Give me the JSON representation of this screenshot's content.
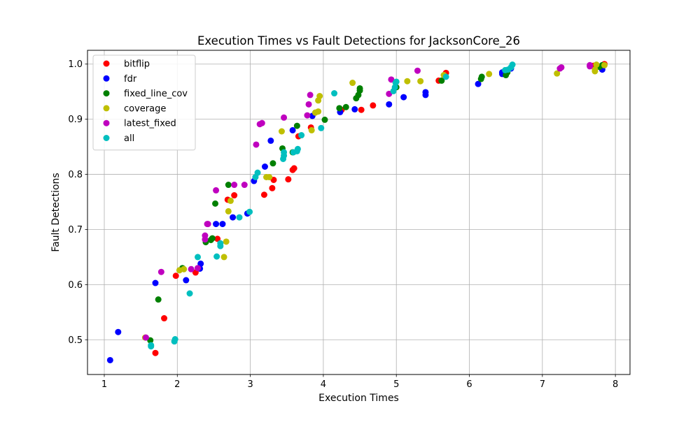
{
  "chart_data": {
    "type": "scatter",
    "title": "Execution Times vs Fault Detections for JacksonCore_26",
    "xlabel": "Execution Times",
    "ylabel": "Fault Detections",
    "xlim": [
      0.77,
      8.2
    ],
    "ylim": [
      0.437,
      1.025
    ],
    "xticks": [
      1,
      2,
      3,
      4,
      5,
      6,
      7,
      8
    ],
    "xtick_labels": [
      "1",
      "2",
      "3",
      "4",
      "5",
      "6",
      "7",
      "8"
    ],
    "yticks": [
      0.5,
      0.6,
      0.7,
      0.8,
      0.9,
      1.0
    ],
    "ytick_labels": [
      "0.5",
      "0.6",
      "0.7",
      "0.8",
      "0.9",
      "1.0"
    ],
    "grid": true,
    "legend_position": "upper left",
    "series": [
      {
        "name": "bitflip",
        "color": "#ff0000",
        "points": [
          [
            1.7,
            0.476
          ],
          [
            1.82,
            0.539
          ],
          [
            1.98,
            0.616
          ],
          [
            2.25,
            0.622
          ],
          [
            2.55,
            0.683
          ],
          [
            2.69,
            0.754
          ],
          [
            2.78,
            0.762
          ],
          [
            3.19,
            0.763
          ],
          [
            3.3,
            0.775
          ],
          [
            3.32,
            0.79
          ],
          [
            3.52,
            0.791
          ],
          [
            3.58,
            0.808
          ],
          [
            3.6,
            0.811
          ],
          [
            3.66,
            0.869
          ],
          [
            3.83,
            0.885
          ],
          [
            4.25,
            0.917
          ],
          [
            4.52,
            0.917
          ],
          [
            4.68,
            0.925
          ],
          [
            5.58,
            0.97
          ],
          [
            5.68,
            0.984
          ],
          [
            7.85,
            1.0
          ],
          [
            7.7,
            0.997
          ]
        ]
      },
      {
        "name": "fdr",
        "color": "#0000ff",
        "points": [
          [
            1.08,
            0.463
          ],
          [
            1.19,
            0.514
          ],
          [
            1.7,
            0.603
          ],
          [
            2.12,
            0.608
          ],
          [
            2.31,
            0.629
          ],
          [
            2.32,
            0.638
          ],
          [
            2.53,
            0.71
          ],
          [
            2.62,
            0.71
          ],
          [
            2.76,
            0.722
          ],
          [
            2.96,
            0.729
          ],
          [
            3.05,
            0.788
          ],
          [
            3.2,
            0.814
          ],
          [
            3.28,
            0.861
          ],
          [
            3.58,
            0.88
          ],
          [
            3.85,
            0.906
          ],
          [
            4.23,
            0.913
          ],
          [
            4.43,
            0.918
          ],
          [
            4.9,
            0.927
          ],
          [
            5.1,
            0.94
          ],
          [
            5.4,
            0.944
          ],
          [
            5.4,
            0.949
          ],
          [
            6.12,
            0.964
          ],
          [
            6.45,
            0.982
          ],
          [
            6.45,
            0.985
          ],
          [
            6.57,
            0.992
          ],
          [
            7.82,
            0.99
          ]
        ]
      },
      {
        "name": "fixed_line_cov",
        "color": "#008000",
        "points": [
          [
            1.63,
            0.499
          ],
          [
            1.74,
            0.573
          ],
          [
            2.07,
            0.63
          ],
          [
            2.39,
            0.677
          ],
          [
            2.46,
            0.681
          ],
          [
            2.48,
            0.684
          ],
          [
            2.52,
            0.747
          ],
          [
            2.7,
            0.781
          ],
          [
            3.31,
            0.82
          ],
          [
            3.44,
            0.847
          ],
          [
            3.58,
            0.84
          ],
          [
            3.64,
            0.888
          ],
          [
            4.02,
            0.899
          ],
          [
            4.22,
            0.92
          ],
          [
            4.31,
            0.922
          ],
          [
            4.45,
            0.938
          ],
          [
            4.48,
            0.944
          ],
          [
            4.5,
            0.952
          ],
          [
            4.5,
            0.956
          ],
          [
            5.0,
            0.958
          ],
          [
            5.62,
            0.97
          ],
          [
            6.16,
            0.973
          ],
          [
            6.17,
            0.977
          ],
          [
            6.5,
            0.98
          ],
          [
            6.52,
            0.985
          ],
          [
            7.78,
            0.995
          ],
          [
            7.82,
            0.998
          ]
        ]
      },
      {
        "name": "coverage",
        "color": "#bfbf00",
        "points": [
          [
            1.56,
            0.504
          ],
          [
            2.03,
            0.626
          ],
          [
            2.09,
            0.628
          ],
          [
            2.64,
            0.65
          ],
          [
            2.67,
            0.678
          ],
          [
            2.7,
            0.733
          ],
          [
            2.73,
            0.752
          ],
          [
            3.22,
            0.795
          ],
          [
            3.26,
            0.795
          ],
          [
            3.43,
            0.878
          ],
          [
            3.84,
            0.88
          ],
          [
            3.89,
            0.912
          ],
          [
            3.93,
            0.914
          ],
          [
            3.93,
            0.934
          ],
          [
            3.95,
            0.942
          ],
          [
            4.4,
            0.966
          ],
          [
            5.15,
            0.969
          ],
          [
            5.33,
            0.969
          ],
          [
            5.65,
            0.98
          ],
          [
            6.27,
            0.982
          ],
          [
            7.2,
            0.983
          ],
          [
            7.72,
            0.987
          ],
          [
            7.72,
            0.99
          ],
          [
            7.74,
            0.999
          ],
          [
            7.85,
            0.998
          ]
        ]
      },
      {
        "name": "latest_fixed",
        "color": "#bf00bf",
        "points": [
          [
            1.57,
            0.504
          ],
          [
            1.78,
            0.623
          ],
          [
            2.19,
            0.628
          ],
          [
            2.28,
            0.63
          ],
          [
            2.38,
            0.682
          ],
          [
            2.38,
            0.689
          ],
          [
            2.41,
            0.71
          ],
          [
            2.42,
            0.71
          ],
          [
            2.53,
            0.771
          ],
          [
            2.78,
            0.781
          ],
          [
            2.92,
            0.781
          ],
          [
            3.08,
            0.854
          ],
          [
            3.13,
            0.891
          ],
          [
            3.16,
            0.893
          ],
          [
            3.46,
            0.903
          ],
          [
            3.78,
            0.907
          ],
          [
            3.8,
            0.927
          ],
          [
            3.82,
            0.944
          ],
          [
            4.9,
            0.946
          ],
          [
            4.93,
            0.972
          ],
          [
            5.29,
            0.988
          ],
          [
            7.24,
            0.992
          ],
          [
            7.26,
            0.994
          ],
          [
            7.65,
            0.998
          ],
          [
            7.65,
            0.996
          ]
        ]
      },
      {
        "name": "all",
        "color": "#00bfbf",
        "points": [
          [
            1.64,
            0.488
          ],
          [
            1.64,
            0.49
          ],
          [
            1.96,
            0.497
          ],
          [
            1.97,
            0.501
          ],
          [
            2.17,
            0.584
          ],
          [
            2.28,
            0.65
          ],
          [
            2.54,
            0.651
          ],
          [
            2.59,
            0.67
          ],
          [
            2.59,
            0.675
          ],
          [
            2.85,
            0.722
          ],
          [
            2.99,
            0.732
          ],
          [
            3.07,
            0.795
          ],
          [
            3.1,
            0.803
          ],
          [
            3.45,
            0.828
          ],
          [
            3.46,
            0.834
          ],
          [
            3.46,
            0.84
          ],
          [
            3.59,
            0.84
          ],
          [
            3.64,
            0.842
          ],
          [
            3.65,
            0.846
          ],
          [
            3.7,
            0.871
          ],
          [
            3.97,
            0.884
          ],
          [
            4.15,
            0.947
          ],
          [
            4.96,
            0.951
          ],
          [
            4.98,
            0.958
          ],
          [
            4.99,
            0.966
          ],
          [
            5.0,
            0.968
          ],
          [
            5.68,
            0.977
          ],
          [
            6.49,
            0.989
          ],
          [
            6.53,
            0.99
          ],
          [
            6.57,
            0.994
          ],
          [
            6.59,
            0.999
          ]
        ]
      }
    ]
  }
}
